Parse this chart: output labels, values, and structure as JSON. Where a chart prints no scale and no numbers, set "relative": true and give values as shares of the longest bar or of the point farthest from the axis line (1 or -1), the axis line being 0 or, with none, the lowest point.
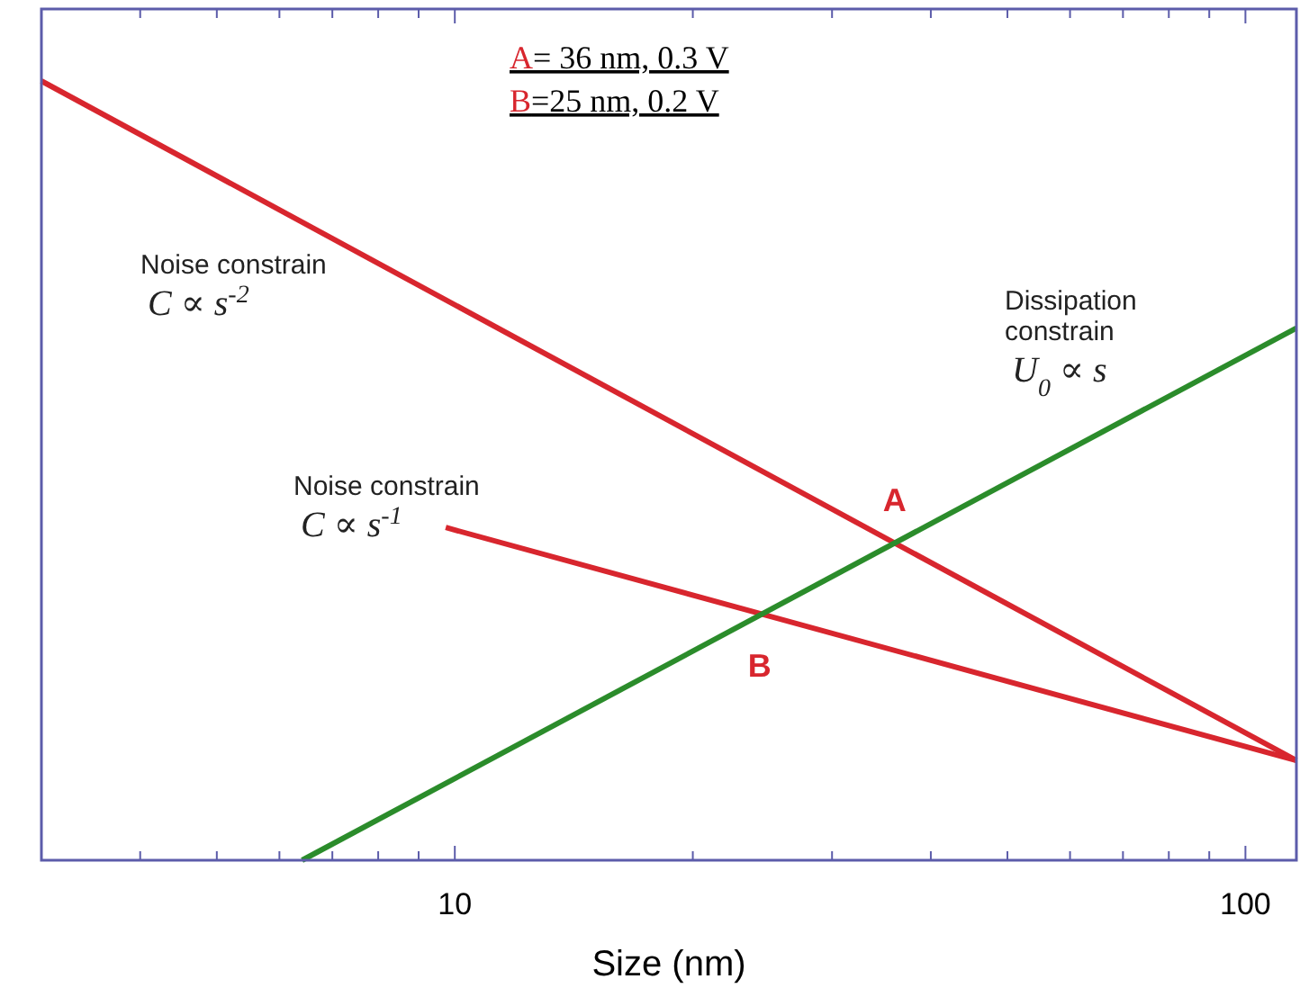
{
  "chart_data": {
    "type": "line",
    "xlabel": "Size (nm)",
    "log": "x",
    "relative": true,
    "grid": false,
    "marker": "none",
    "line_style": "solid",
    "xlim": [
      3,
      116
    ],
    "xticks": [
      {
        "value": 4,
        "label": null
      },
      {
        "value": 5,
        "label": null
      },
      {
        "value": 6,
        "label": null
      },
      {
        "value": 7,
        "label": null
      },
      {
        "value": 8,
        "label": null
      },
      {
        "value": 9,
        "label": null
      },
      10,
      {
        "value": 20,
        "label": null
      },
      {
        "value": 30,
        "label": null
      },
      {
        "value": 40,
        "label": null
      },
      {
        "value": 50,
        "label": null
      },
      {
        "value": 60,
        "label": null
      },
      {
        "value": 70,
        "label": null
      },
      {
        "value": 80,
        "label": null
      },
      {
        "value": 90,
        "label": null
      },
      100
    ],
    "series": [
      {
        "color": "#d8262e",
        "x": [
          3,
          116
        ],
        "values": [
          1,
          0.128
        ]
      },
      {
        "color": "#d8262e",
        "x": [
          9.74,
          116
        ],
        "values": [
          0.427,
          0.128
        ]
      },
      {
        "color": "#2b8c2b",
        "x": [
          6.41,
          116
        ],
        "values": [
          0,
          0.683
        ]
      }
    ],
    "annotations": [
      "A= 36 nm, 0.3 V",
      "B=25 nm, 0.2 V",
      "Noise constrain\nC ∝ s$^{-2}$",
      "Noise constrain\nC ∝ s$^{-1}$",
      "Dissipation\nconstrain\nU$_{0}$ ∝ s",
      {
        "text": "A",
        "x": 36,
        "y": 0.407
      },
      {
        "text": "B",
        "x": 24.3,
        "y": 0.314
      }
    ]
  }
}
